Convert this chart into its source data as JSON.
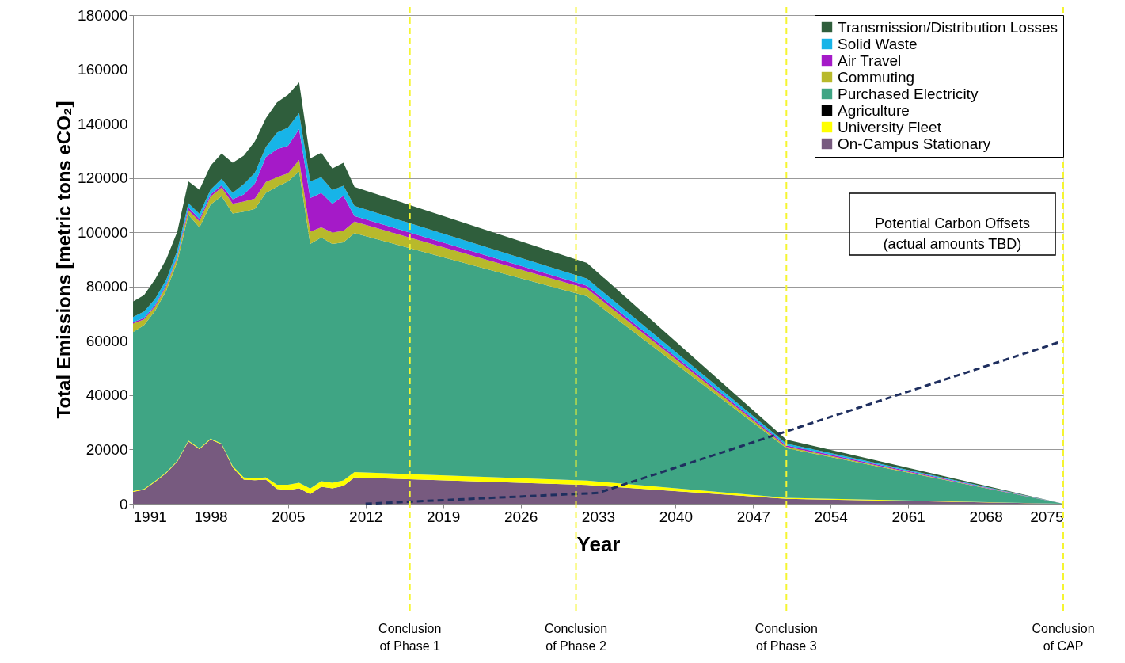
{
  "chart_data": {
    "type": "area",
    "stacked": true,
    "xlabel": "Year",
    "ylabel": "Total Emissions [metric tons eCO₂]",
    "x": [
      1991,
      1992,
      1993,
      1994,
      1995,
      1996,
      1997,
      1998,
      1999,
      2000,
      2001,
      2002,
      2003,
      2004,
      2005,
      2006,
      2007,
      2008,
      2009,
      2010,
      2011,
      2032,
      2050,
      2075
    ],
    "series": [
      {
        "name": "On-Campus Stationary",
        "color": "#775a7f",
        "values": [
          4400,
          5200,
          8100,
          11300,
          15500,
          23000,
          20100,
          23700,
          21900,
          13400,
          8900,
          8700,
          8900,
          5500,
          5000,
          5700,
          3600,
          6300,
          5700,
          6600,
          9700,
          6900,
          1800,
          0
        ]
      },
      {
        "name": "University Fleet",
        "color": "#ffff00",
        "values": [
          300,
          300,
          300,
          300,
          300,
          300,
          300,
          300,
          300,
          500,
          800,
          800,
          800,
          1500,
          2000,
          2000,
          2000,
          2000,
          2000,
          2000,
          2000,
          1600,
          400,
          0
        ]
      },
      {
        "name": "Agriculture",
        "color": "#000000",
        "values": [
          null,
          null,
          null,
          null,
          null,
          null,
          null,
          null,
          null,
          null,
          null,
          null,
          null,
          null,
          null,
          null,
          null,
          null,
          null,
          null,
          null,
          null,
          null,
          null
        ]
      },
      {
        "name": "Purchased Electricity",
        "color": "#3fa584",
        "values": [
          58500,
          60300,
          62700,
          66900,
          73300,
          83200,
          81400,
          86200,
          91100,
          93000,
          97900,
          99100,
          104800,
          109800,
          111700,
          114700,
          90100,
          89800,
          88000,
          87700,
          88000,
          67900,
          18300,
          0
        ]
      },
      {
        "name": "Commuting",
        "color": "#b8b92b",
        "values": [
          3200,
          2100,
          1600,
          1600,
          1600,
          1600,
          2300,
          2900,
          3200,
          3600,
          3700,
          3800,
          4000,
          3500,
          3000,
          4200,
          4500,
          3700,
          4200,
          4200,
          4200,
          2800,
          500,
          0
        ]
      },
      {
        "name": "Air Travel",
        "color": "#a51ac8",
        "values": [
          500,
          500,
          500,
          500,
          500,
          1100,
          800,
          800,
          800,
          1700,
          2600,
          5500,
          9200,
          10300,
          10200,
          11400,
          12400,
          12700,
          10600,
          12900,
          2100,
          1100,
          500,
          0
        ]
      },
      {
        "name": "Solid Waste",
        "color": "#17b4e8",
        "values": [
          1900,
          2400,
          2300,
          1900,
          2100,
          1500,
          1900,
          1800,
          2400,
          2300,
          3800,
          4000,
          3700,
          6100,
          6700,
          5900,
          6100,
          5800,
          5000,
          3700,
          3700,
          2600,
          700,
          0
        ]
      },
      {
        "name": "Transmission/Distribution Losses",
        "color": "#2f5e3c",
        "values": [
          5700,
          6100,
          7200,
          7600,
          6900,
          8000,
          8900,
          8800,
          9300,
          11100,
          10500,
          11600,
          10600,
          11100,
          12100,
          11300,
          8500,
          9000,
          8000,
          8500,
          7000,
          5800,
          1400,
          0
        ]
      },
      {
        "type": "line",
        "color": "#1f2f5f",
        "line_style": "dashed",
        "x": [
          2012,
          2033,
          2075
        ],
        "values": [
          0,
          4000,
          60000
        ]
      }
    ],
    "xlim": [
      1991,
      2075
    ],
    "xticks": [
      1991,
      1998,
      2005,
      2012,
      2019,
      2026,
      2033,
      2040,
      2047,
      2054,
      2061,
      2068,
      2075
    ],
    "ylim": [
      0,
      180000
    ],
    "yticks": [
      0,
      20000,
      40000,
      60000,
      80000,
      100000,
      120000,
      140000,
      160000,
      180000
    ],
    "grid": "y",
    "legend": "top right",
    "ref_lines": [
      {
        "axis": "x",
        "value": 2016,
        "label": "Conclusion\nof Phase 1",
        "color": "#f5f531",
        "line_style": "dashed"
      },
      {
        "axis": "x",
        "value": 2031,
        "label": "Conclusion\nof Phase 2",
        "color": "#f5f531",
        "line_style": "dashed"
      },
      {
        "axis": "x",
        "value": 2050,
        "label": "Conclusion\nof Phase 3",
        "color": "#f5f531",
        "line_style": "dashed"
      },
      {
        "axis": "x",
        "value": 2075,
        "label": "Conclusion\nof CAP",
        "color": "#f5f531",
        "line_style": "dashed"
      }
    ],
    "annotations": [
      "Potential Carbon Offsets\n(actual amounts TBD)"
    ]
  }
}
